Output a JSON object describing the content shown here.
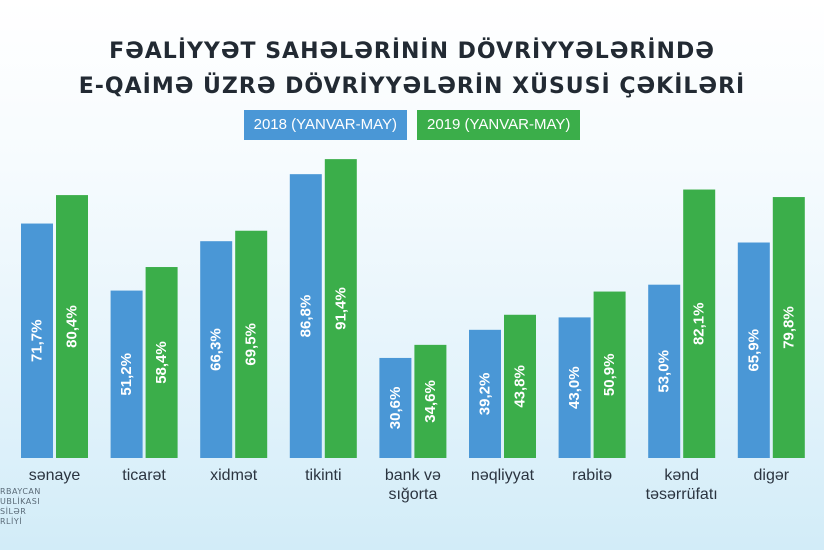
{
  "title_lines": [
    "FƏALİYYƏT SAHƏLƏRİNİN DÖVRİYYƏLƏRİNDƏ",
    "E-QAİMƏ ÜZRƏ DÖVRİYYƏLƏRİN XÜSUSİ ÇƏKİLƏRİ"
  ],
  "colors": {
    "series_2018": "#4a97d6",
    "series_2019": "#3bae4a",
    "title": "#222a33",
    "category_label": "#2b3440",
    "value_label": "#ffffff"
  },
  "logo_lines": [
    "RBAYCAN",
    "UBLİKASI",
    "SİLƏR",
    "RLİYİ"
  ],
  "chart_data": {
    "type": "bar",
    "title": "FƏALİYYƏT SAHƏLƏRİNİN DÖVRİYYƏLƏRİNDƏ E-QAİMƏ ÜZRƏ DÖVRİYYƏLƏRİN XÜSUSİ ÇƏKİLƏRİ",
    "categories": [
      [
        "sənaye"
      ],
      [
        "ticarət"
      ],
      [
        "xidmət"
      ],
      [
        "tikinti"
      ],
      [
        "bank və",
        "sığorta"
      ],
      [
        "nəqliyyat"
      ],
      [
        "rabitə"
      ],
      [
        "kənd",
        "təsərrüfatı"
      ],
      [
        "digər"
      ]
    ],
    "series": [
      {
        "name": "2018 (YANVAR-MAY)",
        "values": [
          71.7,
          51.2,
          66.3,
          86.8,
          30.6,
          39.2,
          43.0,
          53.0,
          65.9
        ],
        "labels": [
          "71,7%",
          "51,2%",
          "66,3%",
          "86,8%",
          "30,6%",
          "39,2%",
          "43,0%",
          "53,0%",
          "65,9%"
        ]
      },
      {
        "name": "2019 (YANVAR-MAY)",
        "values": [
          80.4,
          58.4,
          69.5,
          91.4,
          34.6,
          43.8,
          50.9,
          82.1,
          79.8
        ],
        "labels": [
          "80,4%",
          "58,4%",
          "69,5%",
          "91,4%",
          "34,6%",
          "43,8%",
          "50,9%",
          "82,1%",
          "79,8%"
        ]
      }
    ],
    "legend_position": "top",
    "grid": false,
    "axes_visible": false
  }
}
